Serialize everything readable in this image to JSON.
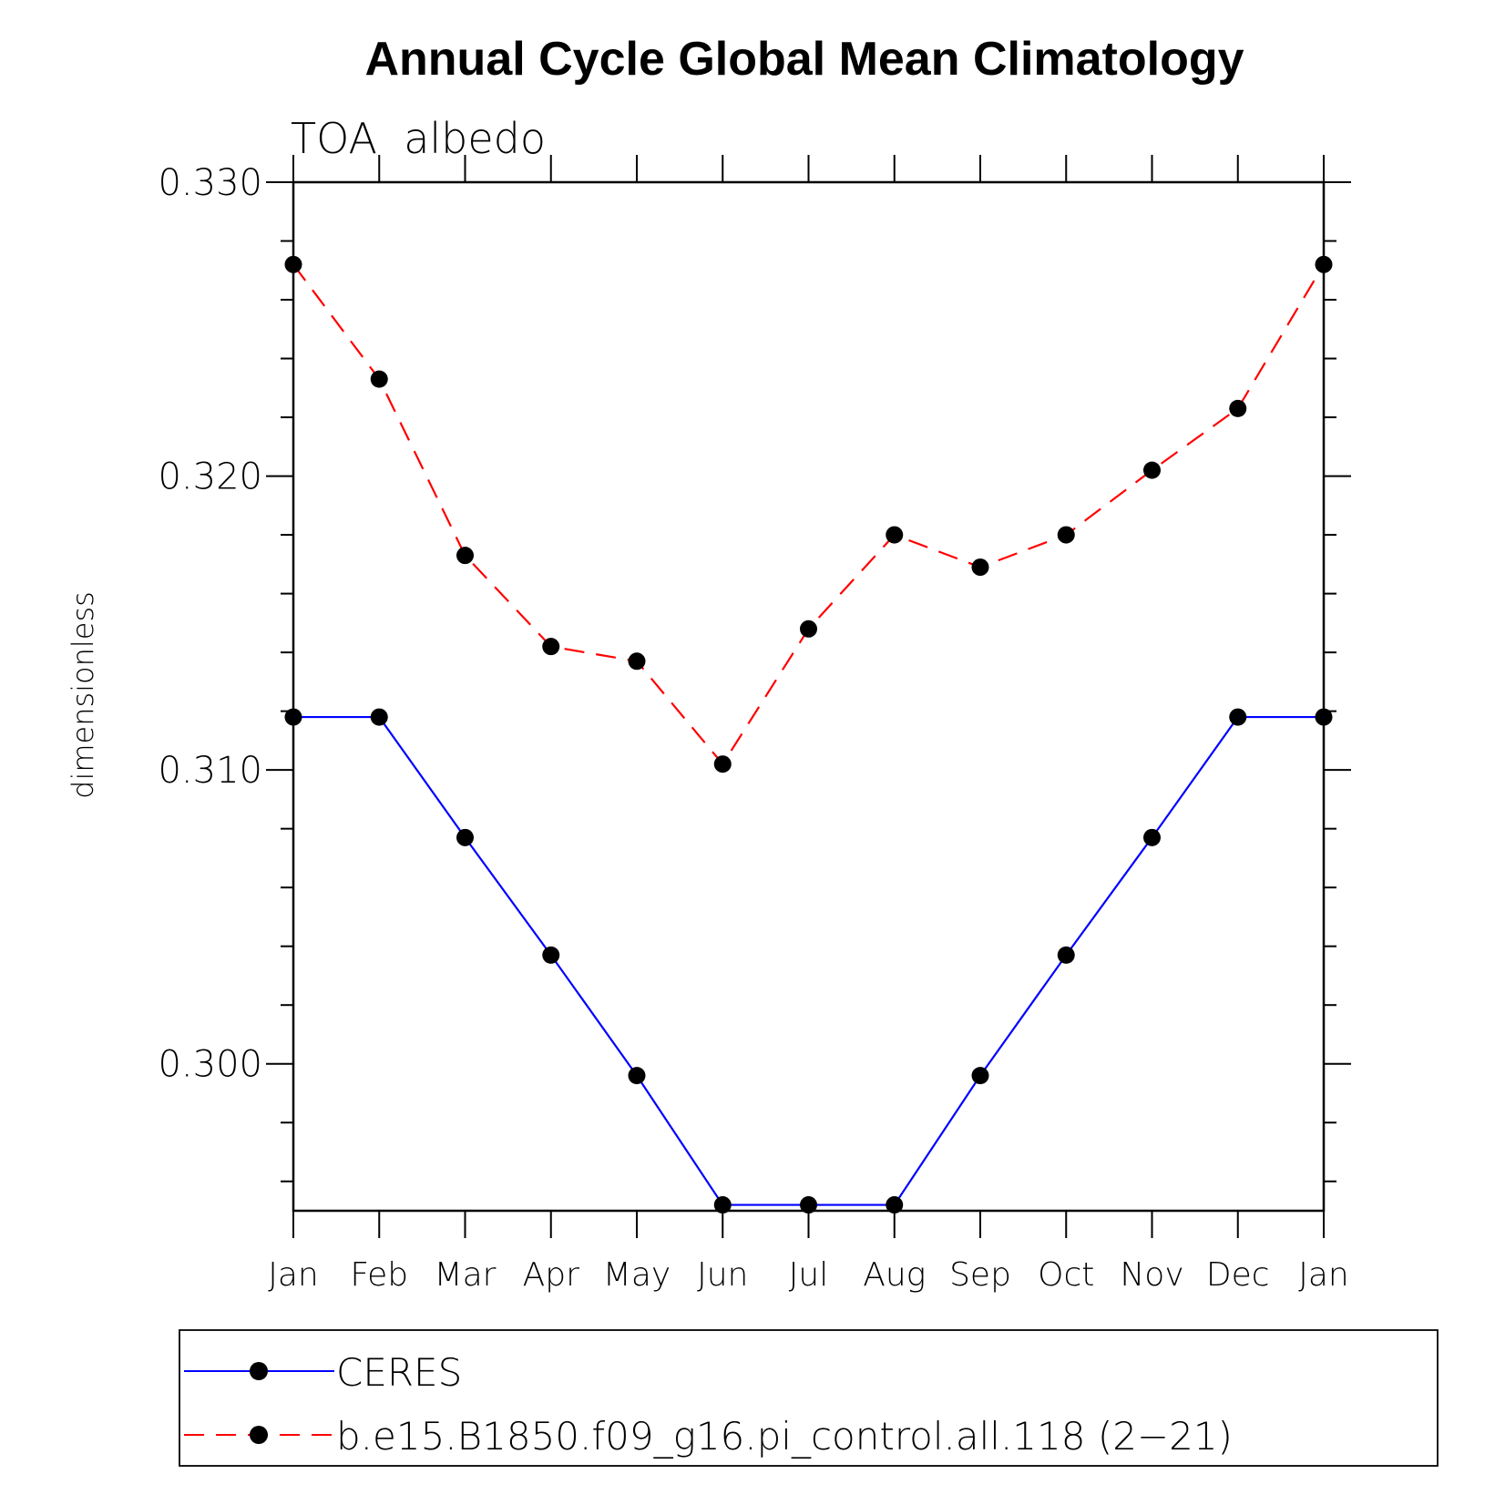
{
  "chart_data": {
    "type": "line",
    "title": "Annual Cycle Global Mean Climatology",
    "subtitle": "TOA  albedo",
    "xlabel": "",
    "ylabel": "dimensionless",
    "categories": [
      "Jan",
      "Feb",
      "Mar",
      "Apr",
      "May",
      "Jun",
      "Jul",
      "Aug",
      "Sep",
      "Oct",
      "Nov",
      "Dec",
      "Jan"
    ],
    "ylim": [
      0.295,
      0.33
    ],
    "yticks": [
      "0.300",
      "0.310",
      "0.320",
      "0.330"
    ],
    "ytick_values": [
      0.3,
      0.31,
      0.32,
      0.33
    ],
    "series": [
      {
        "name": "CERES",
        "color": "#0000ff",
        "style": "solid",
        "values": [
          0.3118,
          0.3118,
          0.3077,
          0.3037,
          0.2996,
          0.2952,
          0.2952,
          0.2952,
          0.2996,
          0.3037,
          0.3077,
          0.3118,
          0.3118
        ]
      },
      {
        "name": "b.e15.B1850.f09_g16.pi_control.all.118 (2−21)",
        "color": "#ff0000",
        "style": "dashed",
        "values": [
          0.3272,
          0.3233,
          0.3173,
          0.3142,
          0.3137,
          0.3102,
          0.3148,
          0.318,
          0.3169,
          0.318,
          0.3202,
          0.3223,
          0.3272
        ]
      }
    ],
    "legend_position": "bottom"
  }
}
